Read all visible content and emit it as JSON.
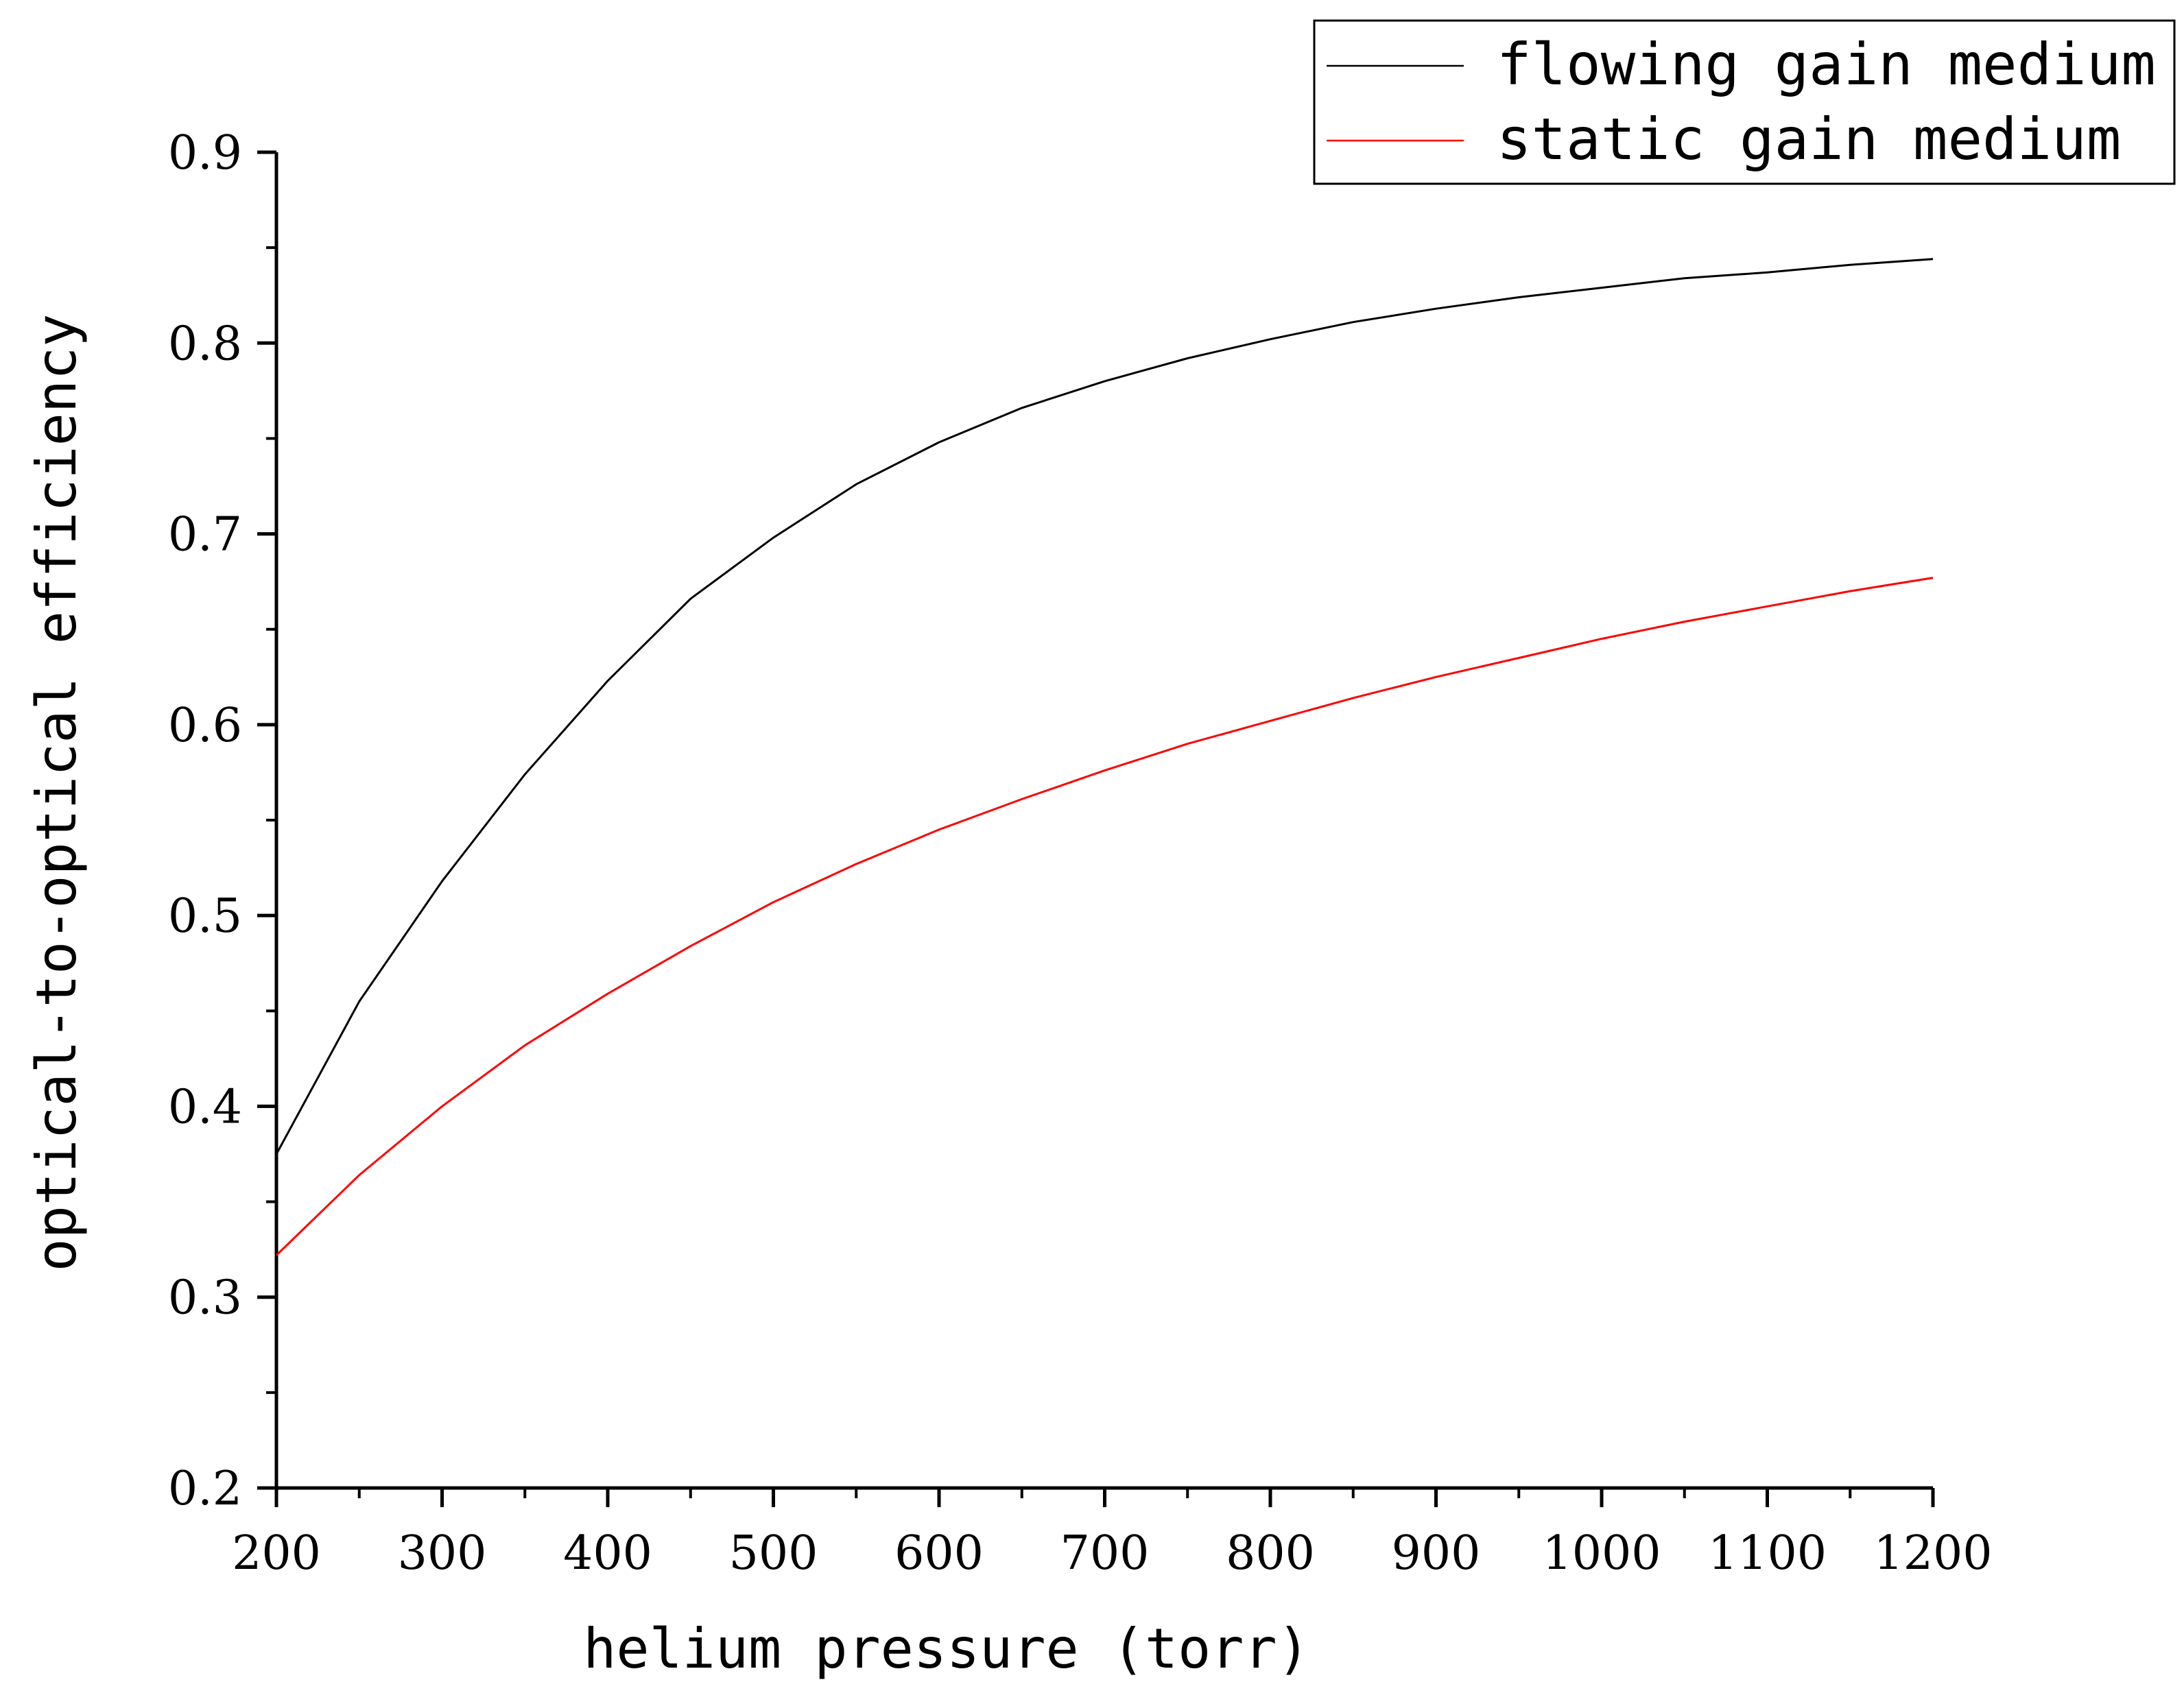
{
  "chart_data": {
    "type": "line",
    "title": "",
    "xlabel": "helium pressure (torr)",
    "ylabel": "optical-to-optical efficiency",
    "xlim": [
      200,
      1200
    ],
    "ylim": [
      0.2,
      0.9
    ],
    "xticks": [
      "200",
      "300",
      "400",
      "500",
      "600",
      "700",
      "800",
      "900",
      "1000",
      "1100",
      "1200"
    ],
    "yticks": [
      "0.2",
      "0.3",
      "0.4",
      "0.5",
      "0.6",
      "0.7",
      "0.8",
      "0.9"
    ],
    "legend_position": "top-right",
    "grid": false,
    "series": [
      {
        "name": "flowing gain medium",
        "color": "#000000",
        "x": [
          200,
          250,
          300,
          350,
          400,
          450,
          500,
          550,
          600,
          650,
          700,
          750,
          800,
          850,
          900,
          950,
          1000,
          1050,
          1100,
          1150,
          1200
        ],
        "y": [
          0.375,
          0.455,
          0.518,
          0.574,
          0.623,
          0.666,
          0.698,
          0.726,
          0.748,
          0.766,
          0.78,
          0.792,
          0.802,
          0.811,
          0.818,
          0.824,
          0.829,
          0.834,
          0.837,
          0.841,
          0.844
        ]
      },
      {
        "name": "static gain medium",
        "color": "#ff0000",
        "x": [
          200,
          250,
          300,
          350,
          400,
          450,
          500,
          550,
          600,
          650,
          700,
          750,
          800,
          850,
          900,
          950,
          1000,
          1050,
          1100,
          1150,
          1200
        ],
        "y": [
          0.322,
          0.364,
          0.4,
          0.432,
          0.459,
          0.484,
          0.507,
          0.527,
          0.545,
          0.561,
          0.576,
          0.59,
          0.602,
          0.614,
          0.625,
          0.635,
          0.645,
          0.654,
          0.662,
          0.67,
          0.677
        ]
      }
    ]
  }
}
